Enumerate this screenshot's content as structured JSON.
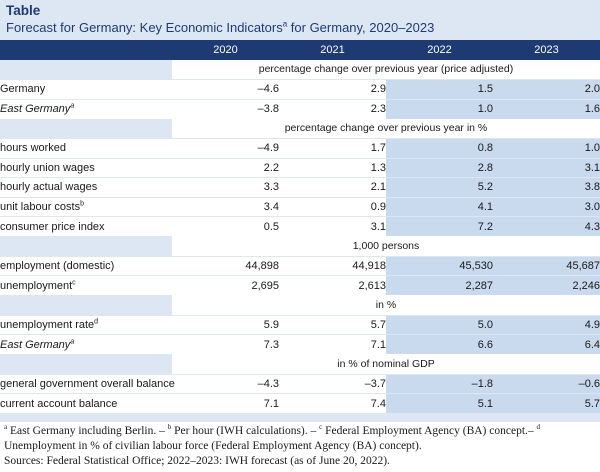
{
  "header": {
    "label": "Table",
    "title_main": "Forecast for Germany: Key Economic Indicators",
    "title_sup": "a",
    "title_tail": " for Germany, 2020–2023"
  },
  "columns": [
    "2020",
    "2021",
    "2022",
    "2023"
  ],
  "sections": [
    {
      "unit": "percentage change over previous year (price adjusted)",
      "rows": [
        {
          "label": "Germany",
          "sup": "",
          "italic": false,
          "values": [
            "–4.6",
            "2.9",
            "1.5",
            "2.0"
          ]
        },
        {
          "label": "East Germany",
          "sup": "a",
          "italic": true,
          "values": [
            "–3.8",
            "2.3",
            "1.0",
            "1.6"
          ]
        }
      ]
    },
    {
      "unit": "percentage change over previous year in %",
      "rows": [
        {
          "label": "hours worked",
          "sup": "",
          "italic": false,
          "values": [
            "–4.9",
            "1.7",
            "0.8",
            "1.0"
          ]
        },
        {
          "label": "hourly union wages",
          "sup": "",
          "italic": false,
          "values": [
            "2.2",
            "1.3",
            "2.8",
            "3.1"
          ]
        },
        {
          "label": "hourly actual wages",
          "sup": "",
          "italic": false,
          "values": [
            "3.3",
            "2.1",
            "5.2",
            "3.8"
          ]
        },
        {
          "label": "unit labour costs",
          "sup": "b",
          "italic": false,
          "values": [
            "3.4",
            "0.9",
            "4.1",
            "3.0"
          ]
        },
        {
          "label": "consumer price index",
          "sup": "",
          "italic": false,
          "values": [
            "0.5",
            "3.1",
            "7.2",
            "4.3"
          ]
        }
      ]
    },
    {
      "unit": "1,000 persons",
      "rows": [
        {
          "label": "employment (domestic)",
          "sup": "",
          "italic": false,
          "values": [
            "44,898",
            "44,918",
            "45,530",
            "45,687"
          ]
        },
        {
          "label": "unemployment",
          "sup": "c",
          "italic": false,
          "values": [
            "2,695",
            "2,613",
            "2,287",
            "2,246"
          ]
        }
      ]
    },
    {
      "unit": "in %",
      "rows": [
        {
          "label": "unemployment rate",
          "sup": "d",
          "italic": false,
          "values": [
            "5.9",
            "5.7",
            "5.0",
            "4.9"
          ]
        },
        {
          "label": "East Germany",
          "sup": "a",
          "italic": true,
          "values": [
            "7.3",
            "7.1",
            "6.6",
            "6.4"
          ]
        }
      ]
    },
    {
      "unit": "in % of nominal GDP",
      "rows": [
        {
          "label": "general government overall balance",
          "sup": "",
          "italic": false,
          "values": [
            "–4.3",
            "–3.7",
            "–1.8",
            "–0.6"
          ]
        },
        {
          "label": "current account balance",
          "sup": "",
          "italic": false,
          "values": [
            "7.1",
            "7.4",
            "5.1",
            "5.7"
          ]
        }
      ]
    }
  ],
  "footnotes": {
    "line1_a": "a",
    "line1_a_text": " East Germany including Berlin. – ",
    "line1_b": "b",
    "line1_b_text": " Per hour (IWH calculations). – ",
    "line1_c": "c",
    "line1_c_text": " Federal Employment Agency (BA) concept.– ",
    "line1_d": "d",
    "line2": "Unemployment in % of civilian labour force (Federal Employment Agency (BA) concept).",
    "line3": "Sources: Federal Statistical Office; 2022–2023: IWH forecast (as of June 20, 2022)."
  },
  "colors": {
    "header_bg": "#1d3a73",
    "title_color": "#1d3a73",
    "forecast_bg": "#c9d9ee",
    "page_tint": "#dde7f4"
  }
}
